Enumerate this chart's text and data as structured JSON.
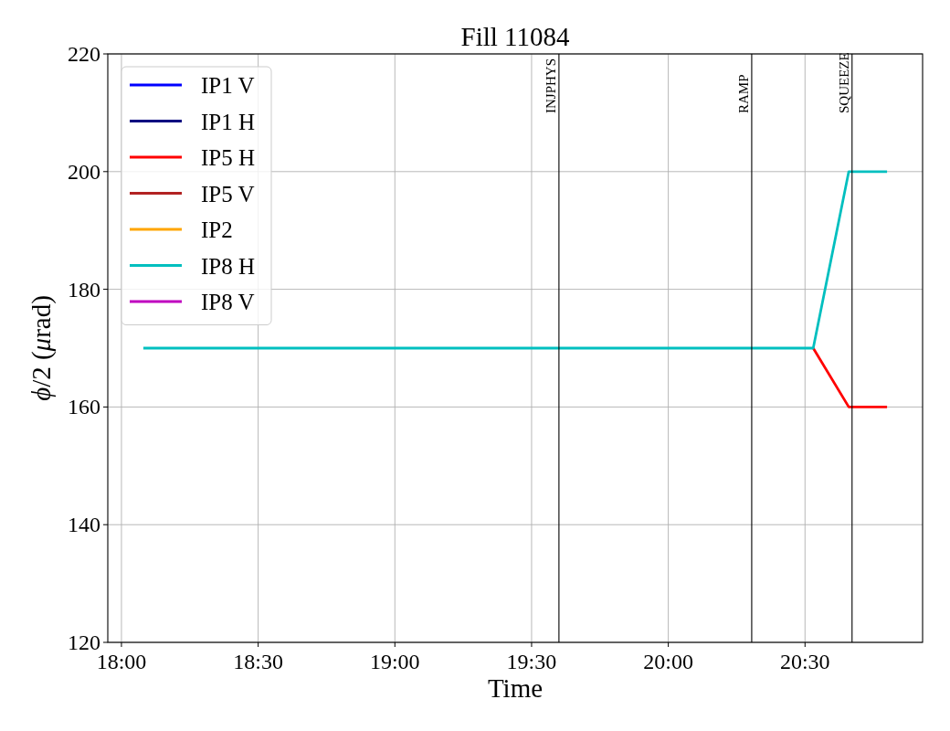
{
  "chart_data": {
    "type": "line",
    "title": "Fill 11084",
    "xlabel": "Time",
    "ylabel": "ϕ/2 (μrad)",
    "xlim": [
      17.95,
      20.93
    ],
    "xticks": [
      {
        "value": 18,
        "label": "18:00"
      },
      {
        "value": 18.5,
        "label": "18:30"
      },
      {
        "value": 19,
        "label": "19:00"
      },
      {
        "value": 19.5,
        "label": "19:30"
      },
      {
        "value": 20,
        "label": "20:00"
      },
      {
        "value": 20.5,
        "label": "20:30"
      }
    ],
    "ylim": [
      120,
      220
    ],
    "yticks": [
      120,
      140,
      160,
      180,
      200,
      220
    ],
    "grid": true,
    "legend": "top left",
    "series": [
      {
        "name": "IP1 V",
        "color": "#0000ff"
      },
      {
        "name": "IP1 H",
        "color": "#000080"
      },
      {
        "name": "IP5 H",
        "color": "#ff0000",
        "x": [
          20.53,
          20.66,
          20.8
        ],
        "values": [
          170,
          160,
          160
        ]
      },
      {
        "name": "IP5 V",
        "color": "#b22222"
      },
      {
        "name": "IP2",
        "color": "#ffa500"
      },
      {
        "name": "IP8 H",
        "color": "#00bfbf",
        "x": [
          18.08,
          20.53,
          20.66,
          20.8
        ],
        "values": [
          170,
          170,
          200,
          200
        ]
      },
      {
        "name": "IP8 V",
        "color": "#bf00bf"
      }
    ],
    "ref_lines": [
      {
        "axis": "x",
        "value": 19.6,
        "label": "INJPHYS",
        "color": "#000000"
      },
      {
        "axis": "x",
        "value": 20.305,
        "label": "RAMP",
        "color": "#000000"
      },
      {
        "axis": "x",
        "value": 20.672,
        "label": "SQUEEZE",
        "color": "#000000"
      }
    ]
  }
}
